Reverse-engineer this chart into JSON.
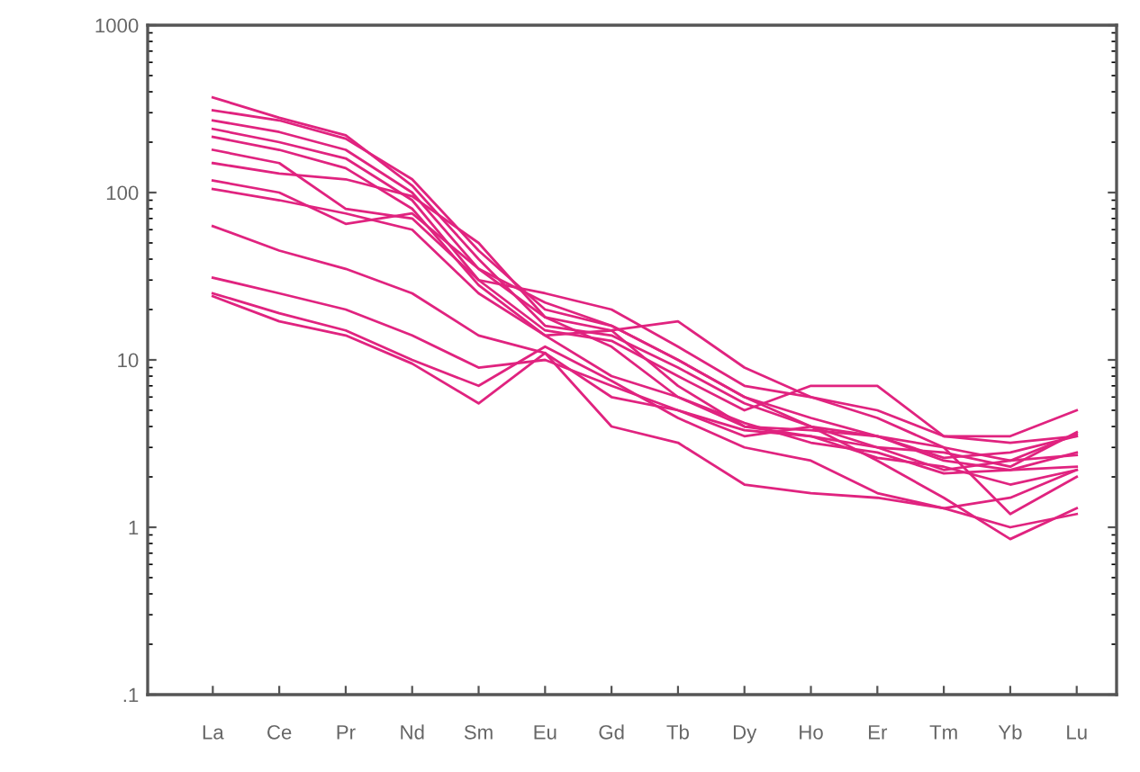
{
  "chart_data": {
    "type": "line",
    "log": true,
    "grid": false,
    "marker": "none",
    "line_style": "solid",
    "categories": [
      "La",
      "Ce",
      "Pr",
      "Nd",
      "Sm",
      "Eu",
      "Gd",
      "Tb",
      "Dy",
      "Ho",
      "Er",
      "Tm",
      "Yb",
      "Lu"
    ],
    "ylim": [
      0.1,
      1000
    ],
    "yticks": [
      {
        "value": 0.1,
        "label": ".1"
      },
      1,
      10,
      100,
      1000
    ],
    "series": [
      {
        "color": "#e0237f",
        "values": [
          370,
          280,
          220,
          110,
          40,
          16,
          14,
          9,
          5.5,
          4,
          3.5,
          2.6,
          2.8,
          3.5
        ]
      },
      {
        "color": "#e0237f",
        "values": [
          310,
          270,
          210,
          120,
          45,
          20,
          16,
          10,
          6,
          4.5,
          3.5,
          2.5,
          2.2,
          2.3
        ]
      },
      {
        "color": "#e0237f",
        "values": [
          270,
          230,
          180,
          100,
          35,
          18,
          15,
          7,
          4,
          3.5,
          3,
          2.8,
          2.3,
          3.7
        ]
      },
      {
        "color": "#e0237f",
        "values": [
          240,
          200,
          160,
          90,
          30,
          15,
          13,
          8,
          5,
          7,
          7,
          3.5,
          3.2,
          3.5
        ]
      },
      {
        "color": "#e0237f",
        "values": [
          215,
          180,
          140,
          80,
          28,
          14,
          15,
          17,
          9,
          6,
          5,
          3.5,
          3.5,
          5
        ]
      },
      {
        "color": "#e0237f",
        "values": [
          180,
          150,
          80,
          70,
          30,
          25,
          20,
          12,
          7,
          6,
          4.5,
          3,
          1.2,
          2.0
        ]
      },
      {
        "color": "#e0237f",
        "values": [
          150,
          130,
          120,
          95,
          50,
          18,
          12,
          6,
          4.2,
          3.2,
          2.8,
          2.1,
          2.2,
          2.8
        ]
      },
      {
        "color": "#e0237f",
        "values": [
          118,
          100,
          65,
          75,
          35,
          22,
          16,
          10,
          6,
          4,
          3,
          2.2,
          2.5,
          3.6
        ]
      },
      {
        "color": "#e0237f",
        "values": [
          105,
          90,
          75,
          60,
          25,
          14,
          8,
          6,
          4,
          3.8,
          3.5,
          3,
          2.5,
          2.7
        ]
      },
      {
        "color": "#e0237f",
        "values": [
          63,
          45,
          35,
          25,
          14,
          11,
          6,
          5,
          3.5,
          4,
          2.5,
          1.5,
          0.85,
          1.3
        ]
      },
      {
        "color": "#e0237f",
        "values": [
          31,
          25,
          20,
          14,
          9,
          10,
          7,
          5,
          3.8,
          3.5,
          2.6,
          2.3,
          1.8,
          2.2
        ]
      },
      {
        "color": "#e0237f",
        "values": [
          25,
          19,
          15,
          10,
          7,
          12,
          7.5,
          4.5,
          3,
          2.5,
          1.6,
          1.3,
          1.5,
          2.2
        ]
      },
      {
        "color": "#e0237f",
        "values": [
          24,
          17,
          14,
          9.5,
          5.5,
          11,
          4,
          3.2,
          1.8,
          1.6,
          1.5,
          1.3,
          1.0,
          1.2
        ]
      }
    ]
  }
}
